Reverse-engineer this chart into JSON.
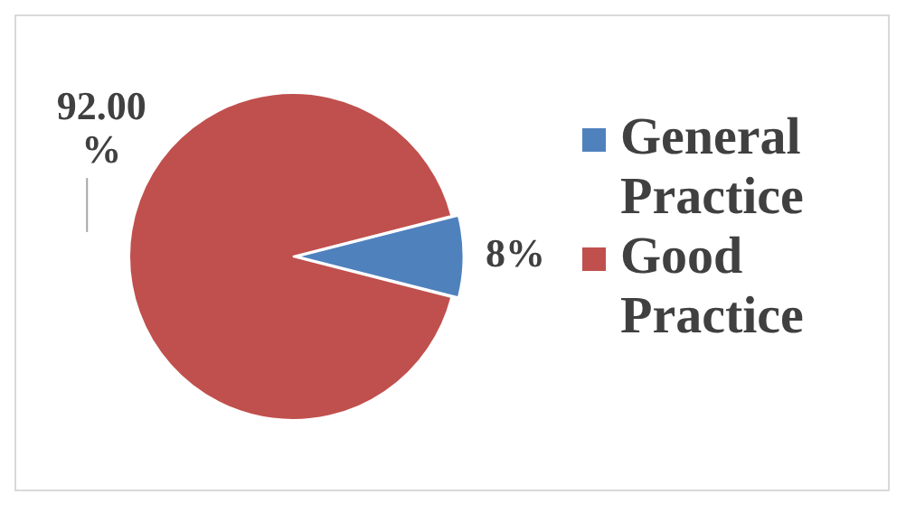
{
  "chart_data": {
    "type": "pie",
    "categories": [
      "General Practice",
      "Good Practice"
    ],
    "values": [
      8,
      92
    ],
    "colors": [
      "#4f81bd",
      "#c0504d"
    ],
    "value_labels": [
      "8%",
      "92.00 %"
    ],
    "legend": "right"
  }
}
